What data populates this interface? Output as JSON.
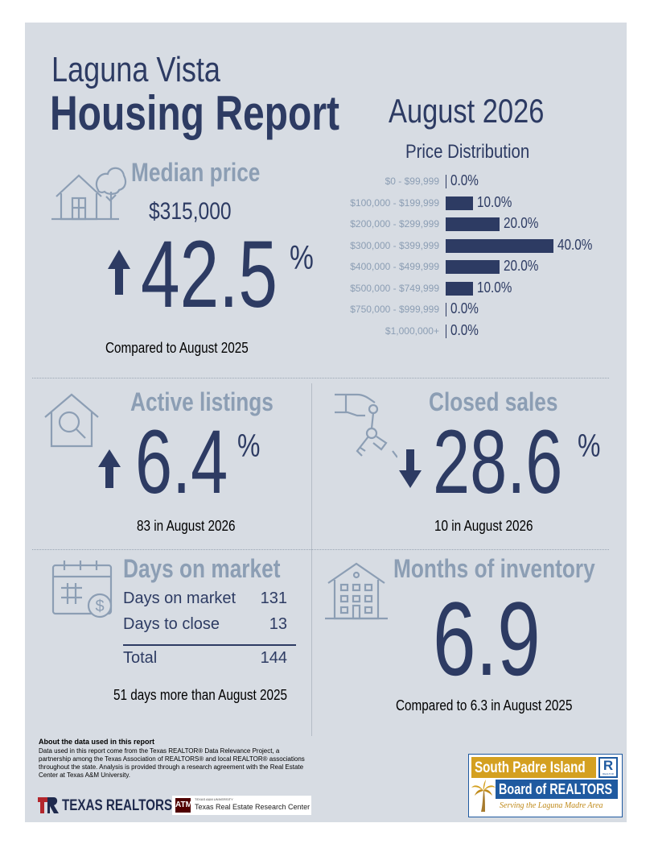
{
  "header": {
    "city": "Laguna Vista",
    "title": "Housing Report",
    "period": "August 2026"
  },
  "median_price": {
    "label": "Median price",
    "value": "$315,000",
    "change": "42.5",
    "pct": "%",
    "direction": "up",
    "compare": "Compared to August 2025"
  },
  "price_distribution": {
    "title": "Price Distribution",
    "rows": [
      {
        "label": "$0 - $99,999",
        "value": "0.0%",
        "fraction": 0.0
      },
      {
        "label": "$100,000 - $199,999",
        "value": "10.0%",
        "fraction": 0.1
      },
      {
        "label": "$200,000 - $299,999",
        "value": "20.0%",
        "fraction": 0.2
      },
      {
        "label": "$300,000 - $399,999",
        "value": "40.0%",
        "fraction": 0.4
      },
      {
        "label": "$400,000 - $499,999",
        "value": "20.0%",
        "fraction": 0.2
      },
      {
        "label": "$500,000 - $749,999",
        "value": "10.0%",
        "fraction": 0.1
      },
      {
        "label": "$750,000 - $999,999",
        "value": "0.0%",
        "fraction": 0.0
      },
      {
        "label": "$1,000,000+",
        "value": "0.0%",
        "fraction": 0.0
      }
    ]
  },
  "active_listings": {
    "label": "Active listings",
    "change": "6.4",
    "pct": "%",
    "direction": "up",
    "note": "83 in August 2026"
  },
  "closed_sales": {
    "label": "Closed sales",
    "change": "28.6",
    "pct": "%",
    "direction": "down",
    "note": "10 in August 2026"
  },
  "days_on_market": {
    "label": "Days on market",
    "rows": [
      {
        "label": "Days on market",
        "value": "131"
      },
      {
        "label": "Days to close",
        "value": "13"
      }
    ],
    "total_label": "Total",
    "total_value": "144",
    "note": "51 days more than August 2025"
  },
  "months_inventory": {
    "label": "Months of inventory",
    "value": "6.9",
    "note": "Compared to 6.3 in August 2025"
  },
  "about": {
    "heading": "About the data used in this report",
    "body": "Data used in this report come from the Texas REALTOR® Data Relevance Project, a partnership among the Texas Association of REALTORS® and local REALTOR® associations throughout the state. Analysis is provided through a research agreement with the Real Estate Center at Texas A&M University."
  },
  "logos": {
    "texas_realtors": "TEXAS REALTORS",
    "tamu_small": "TEXAS A&M UNIVERSITY",
    "tamu_center": "Texas Real Estate Research Center",
    "spi_line1": "South Padre Island",
    "spi_line2": "Board of REALTORS",
    "spi_tagline": "Serving the Laguna Madre Area",
    "spi_r": "R",
    "spi_r_small": "REALTOR"
  },
  "colors": {
    "navy": "#2d3b63",
    "steel": "#8c9eb4",
    "panel": "#d7dce3",
    "spi_gold": "#d4a020",
    "spi_blue": "#1f5aa0"
  }
}
